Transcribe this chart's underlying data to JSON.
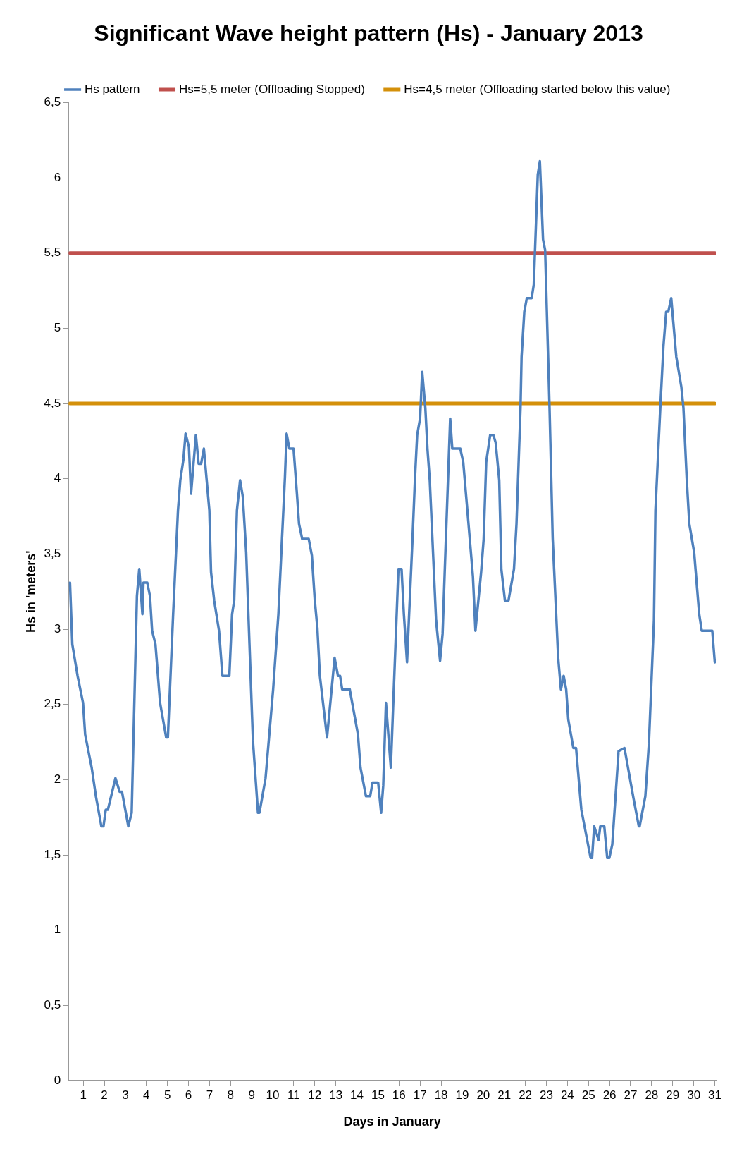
{
  "chart_data": {
    "type": "line",
    "title": "Significant Wave height pattern (Hs) - January 2013",
    "xlabel": "Days in January",
    "ylabel": "Hs in 'meters'",
    "xlim": [
      0.3,
      31.05
    ],
    "xticks": [
      1,
      2,
      3,
      4,
      5,
      6,
      7,
      8,
      9,
      10,
      11,
      12,
      13,
      14,
      15,
      16,
      17,
      18,
      19,
      20,
      21,
      22,
      23,
      24,
      25,
      26,
      27,
      28,
      29,
      30,
      31
    ],
    "ylim": [
      0,
      6.5
    ],
    "yticks": [
      0,
      {
        "value": 0.5,
        "label": "0,5"
      },
      1,
      {
        "value": 1.5,
        "label": "1,5"
      },
      2,
      {
        "value": 2.5,
        "label": "2,5"
      },
      3,
      {
        "value": 3.5,
        "label": "3,5"
      },
      4,
      {
        "value": 4.5,
        "label": "4,5"
      },
      5,
      {
        "value": 5.5,
        "label": "5,5"
      },
      6,
      {
        "value": 6.5,
        "label": "6,5"
      }
    ],
    "grid": false,
    "legend": "top",
    "marker": "none",
    "line_style": "solid",
    "series": [
      {
        "name": "Hs pattern",
        "color": "#4f81bd",
        "x": [
          0.37,
          0.48,
          0.73,
          0.99,
          1.09,
          1.4,
          1.6,
          1.86,
          1.96,
          2.07,
          2.17,
          2.53,
          2.73,
          2.84,
          3.14,
          3.3,
          3.55,
          3.66,
          3.81,
          3.86,
          4.04,
          4.17,
          4.27,
          4.43,
          4.65,
          4.94,
          5.02,
          5.27,
          5.5,
          5.61,
          5.76,
          5.86,
          6.02,
          6.12,
          6.35,
          6.48,
          6.6,
          6.73,
          6.99,
          7.07,
          7.22,
          7.45,
          7.61,
          7.94,
          8.07,
          8.17,
          8.3,
          8.45,
          8.58,
          8.74,
          9.06,
          9.2,
          9.3,
          9.37,
          9.66,
          10.02,
          10.27,
          10.58,
          10.66,
          10.79,
          10.99,
          11.15,
          11.25,
          11.4,
          11.71,
          11.86,
          12.0,
          12.12,
          12.24,
          12.58,
          12.94,
          13.1,
          13.2,
          13.3,
          13.66,
          14.05,
          14.17,
          14.43,
          14.63,
          14.74,
          15.01,
          15.15,
          15.25,
          15.38,
          15.61,
          15.97,
          16.12,
          16.23,
          16.38,
          16.48,
          16.64,
          16.76,
          16.86,
          17.0,
          17.1,
          17.25,
          17.35,
          17.46,
          17.76,
          17.95,
          18.07,
          18.17,
          18.43,
          18.53,
          18.91,
          19.05,
          19.3,
          19.51,
          19.63,
          19.9,
          20.02,
          20.14,
          20.33,
          20.48,
          20.59,
          20.76,
          20.86,
          21.03,
          21.2,
          21.46,
          21.58,
          21.77,
          21.82,
          21.95,
          22.07,
          22.3,
          22.4,
          22.59,
          22.69,
          22.84,
          22.94,
          23.15,
          23.3,
          23.56,
          23.69,
          23.82,
          23.94,
          24.04,
          24.28,
          24.41,
          24.66,
          25.1,
          25.17,
          25.27,
          25.48,
          25.56,
          25.75,
          25.89,
          25.99,
          26.13,
          26.43,
          26.71,
          27.12,
          27.39,
          27.43,
          27.7,
          27.87,
          28.11,
          28.18,
          28.41,
          28.56,
          28.69,
          28.79,
          28.93,
          29.17,
          29.41,
          29.51,
          29.67,
          29.79,
          30.02,
          30.26,
          30.38,
          30.88,
          31.0
        ],
        "values": [
          3.31,
          2.9,
          2.69,
          2.51,
          2.3,
          2.08,
          1.89,
          1.69,
          1.69,
          1.8,
          1.8,
          2.01,
          1.92,
          1.92,
          1.69,
          1.78,
          3.22,
          3.4,
          3.1,
          3.31,
          3.31,
          3.22,
          2.99,
          2.9,
          2.51,
          2.28,
          2.28,
          3.1,
          3.79,
          3.99,
          4.13,
          4.3,
          4.21,
          3.9,
          4.29,
          4.1,
          4.1,
          4.2,
          3.79,
          3.38,
          3.19,
          2.99,
          2.69,
          2.69,
          3.1,
          3.19,
          3.79,
          3.99,
          3.88,
          3.51,
          2.26,
          1.98,
          1.78,
          1.78,
          2.01,
          2.6,
          3.1,
          4.01,
          4.3,
          4.2,
          4.2,
          3.9,
          3.7,
          3.6,
          3.6,
          3.49,
          3.19,
          3.01,
          2.69,
          2.28,
          2.81,
          2.69,
          2.69,
          2.6,
          2.6,
          2.3,
          2.08,
          1.89,
          1.89,
          1.98,
          1.98,
          1.78,
          1.96,
          2.51,
          2.08,
          3.4,
          3.4,
          3.1,
          2.78,
          3.1,
          3.6,
          4.01,
          4.29,
          4.4,
          4.71,
          4.47,
          4.2,
          3.99,
          3.06,
          2.79,
          2.97,
          3.38,
          4.4,
          4.2,
          4.2,
          4.11,
          3.7,
          3.35,
          2.99,
          3.38,
          3.6,
          4.11,
          4.29,
          4.29,
          4.24,
          3.99,
          3.4,
          3.19,
          3.19,
          3.4,
          3.7,
          4.47,
          4.81,
          5.11,
          5.2,
          5.2,
          5.29,
          6.02,
          6.11,
          5.59,
          5.52,
          4.47,
          3.6,
          2.81,
          2.6,
          2.69,
          2.6,
          2.4,
          2.21,
          2.21,
          1.8,
          1.48,
          1.48,
          1.69,
          1.6,
          1.69,
          1.69,
          1.48,
          1.48,
          1.57,
          2.19,
          2.21,
          1.89,
          1.69,
          1.69,
          1.89,
          2.24,
          3.06,
          3.79,
          4.47,
          4.88,
          5.11,
          5.11,
          5.2,
          4.81,
          4.61,
          4.47,
          3.99,
          3.7,
          3.51,
          3.1,
          2.99,
          2.99,
          2.78
        ]
      },
      {
        "name": "Hs=5,5 meter (Offloading Stopped)",
        "color": "#c0504d",
        "x": [
          0.37,
          31.0
        ],
        "values": [
          5.5,
          5.5
        ]
      },
      {
        "name": "Hs=4,5 meter (Offloading started below this value)",
        "color": "#d4900a",
        "x": [
          0.37,
          31.0
        ],
        "values": [
          4.5,
          4.5
        ]
      }
    ]
  }
}
